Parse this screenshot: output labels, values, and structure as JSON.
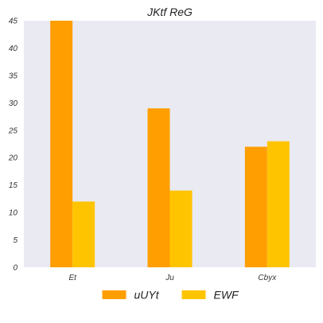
{
  "chart_data": {
    "type": "bar",
    "title": "JKtf ReG",
    "xlabel": "",
    "ylabel": "",
    "categories": [
      "Et",
      "Ju",
      "Cbyx"
    ],
    "series": [
      {
        "name": "uUYt",
        "values": [
          45,
          29,
          22
        ],
        "color": "#FF9E00"
      },
      {
        "name": "EWF",
        "values": [
          12,
          14,
          23
        ],
        "color": "#FFC400"
      }
    ],
    "ylim": [
      0,
      45
    ],
    "yticks": [
      0,
      5,
      10,
      15,
      20,
      25,
      30,
      35,
      40,
      45
    ],
    "grid": false,
    "legend": "bottom-center",
    "background": "#EAEAF2"
  }
}
